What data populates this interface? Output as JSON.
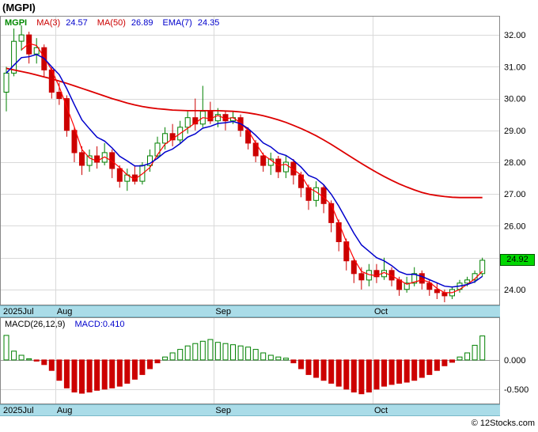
{
  "header": {
    "symbol": "(MGPI)"
  },
  "footer": {
    "copyright": "© 12Stocks.com"
  },
  "legend": {
    "symbol": "MGPI",
    "symbol_color": "#008800",
    "items": [
      {
        "label": "MA(3)",
        "value": "24.57",
        "label_color": "#cc0000",
        "value_color": "#0000cc"
      },
      {
        "label": "MA(50)",
        "value": "26.89",
        "label_color": "#cc0000",
        "value_color": "#0000cc"
      },
      {
        "label": "EMA(7)",
        "value": "24.35",
        "label_color": "#0000cc",
        "value_color": "#0000cc"
      }
    ]
  },
  "price_axis": {
    "last_price": 24.92,
    "last_price_label": "24.92",
    "badge_color": "#00d800",
    "ticks": [
      {
        "value": 32,
        "label": "32.00"
      },
      {
        "value": 31,
        "label": "31.00"
      },
      {
        "value": 30,
        "label": "30.00"
      },
      {
        "value": 29,
        "label": "29.00"
      },
      {
        "value": 28,
        "label": "28.00"
      },
      {
        "value": 27,
        "label": "27.00"
      },
      {
        "value": 26,
        "label": "26.00"
      },
      {
        "value": 25,
        "label": "25.00"
      },
      {
        "value": 24,
        "label": "24.00"
      }
    ]
  },
  "date_axis": {
    "ticks": [
      {
        "label": "2025Jul",
        "index": 0
      },
      {
        "label": "Aug",
        "index": 7
      },
      {
        "label": "Sep",
        "index": 28
      },
      {
        "label": "Oct",
        "index": 49
      }
    ]
  },
  "macd_panel": {
    "label": "MACD(26,12,9)",
    "value_label": "MACD:0.410",
    "value_color": "#0000cc",
    "ticks": [
      {
        "value": 0,
        "label": "0.000"
      },
      {
        "value": -0.5,
        "label": "-0.500"
      }
    ]
  },
  "chart_data": {
    "type": "candlestick+macd",
    "symbol": "MGPI",
    "title": "(MGPI) daily price chart with MA(3), MA(50), EMA(7) and MACD(26,12,9)",
    "ylim": [
      23.5,
      32.6
    ],
    "macd_ylim": [
      -0.76,
      0.73
    ],
    "x_months": [
      "2025Jul",
      "Aug",
      "Sep",
      "Oct"
    ],
    "candles": {
      "open": [
        30.2,
        30.8,
        31.8,
        32.0,
        31.4,
        31.6,
        30.9,
        30.2,
        30.0,
        29.0,
        28.3,
        27.9,
        28.2,
        28.0,
        28.3,
        27.8,
        27.4,
        27.6,
        27.4,
        27.9,
        28.2,
        28.6,
        28.9,
        28.7,
        29.1,
        29.4,
        29.2,
        29.6,
        29.3,
        29.5,
        29.3,
        29.4,
        29.0,
        28.6,
        28.2,
        27.9,
        28.1,
        27.7,
        28.0,
        27.6,
        27.2,
        26.8,
        27.2,
        26.7,
        26.1,
        25.5,
        24.9,
        24.5,
        24.3,
        24.6,
        24.4,
        24.6,
        24.3,
        24.0,
        24.2,
        24.5,
        24.2,
        24.0,
        23.9,
        23.8,
        24.0,
        24.2,
        24.3,
        24.5
      ],
      "high": [
        31.0,
        32.2,
        32.3,
        32.1,
        31.9,
        31.7,
        31.0,
        30.5,
        30.1,
        29.1,
        28.5,
        28.4,
        28.5,
        28.6,
        28.4,
        27.9,
        27.8,
        27.9,
        28.0,
        28.4,
        28.8,
        29.1,
        29.2,
        29.3,
        29.6,
        30.0,
        30.4,
        29.9,
        29.7,
        29.6,
        29.6,
        29.5,
        29.1,
        28.7,
        28.3,
        28.3,
        28.2,
        28.2,
        28.1,
        27.7,
        27.3,
        27.4,
        27.3,
        26.8,
        26.2,
        25.6,
        25.0,
        24.7,
        24.8,
        24.8,
        25.0,
        24.7,
        24.4,
        24.4,
        24.7,
        24.6,
        24.3,
        24.2,
        24.0,
        24.1,
        24.3,
        24.4,
        24.6,
        25.0
      ],
      "low": [
        29.6,
        30.7,
        31.5,
        31.1,
        31.1,
        30.7,
        30.0,
        29.8,
        28.8,
        28.0,
        27.6,
        27.7,
        27.8,
        27.9,
        27.5,
        27.2,
        27.1,
        27.3,
        27.3,
        27.7,
        28.1,
        28.4,
        28.5,
        28.6,
        28.9,
        29.0,
        29.1,
        29.2,
        29.1,
        29.0,
        29.2,
        28.8,
        28.4,
        28.0,
        27.7,
        27.6,
        27.5,
        27.5,
        27.3,
        26.9,
        26.5,
        26.6,
        26.4,
        25.8,
        25.2,
        24.6,
        24.2,
        24.0,
        24.1,
        24.2,
        24.3,
        24.1,
        23.8,
        23.9,
        24.1,
        24.0,
        23.8,
        23.7,
        23.6,
        23.7,
        23.9,
        24.1,
        24.2,
        24.4
      ],
      "close": [
        30.8,
        31.8,
        32.0,
        31.4,
        31.6,
        30.9,
        30.2,
        30.0,
        29.0,
        28.3,
        27.9,
        28.2,
        28.0,
        28.3,
        27.8,
        27.4,
        27.6,
        27.4,
        27.9,
        28.2,
        28.6,
        28.9,
        28.7,
        29.1,
        29.4,
        29.2,
        29.6,
        29.3,
        29.5,
        29.3,
        29.4,
        29.0,
        28.6,
        28.2,
        27.9,
        28.1,
        27.7,
        28.0,
        27.6,
        27.2,
        26.8,
        27.2,
        26.7,
        26.1,
        25.5,
        24.9,
        24.5,
        24.3,
        24.6,
        24.4,
        24.6,
        24.3,
        24.0,
        24.2,
        24.5,
        24.2,
        24.0,
        23.9,
        23.8,
        24.0,
        24.2,
        24.3,
        24.5,
        24.92
      ]
    },
    "ma50": [
      30.95,
      30.9,
      30.85,
      30.8,
      30.74,
      30.68,
      30.62,
      30.55,
      30.48,
      30.4,
      30.32,
      30.24,
      30.16,
      30.08,
      30.0,
      29.93,
      29.86,
      29.8,
      29.75,
      29.71,
      29.68,
      29.66,
      29.64,
      29.63,
      29.62,
      29.62,
      29.62,
      29.62,
      29.62,
      29.61,
      29.6,
      29.58,
      29.55,
      29.51,
      29.46,
      29.4,
      29.33,
      29.25,
      29.16,
      29.06,
      28.95,
      28.83,
      28.7,
      28.56,
      28.41,
      28.26,
      28.11,
      27.96,
      27.82,
      27.68,
      27.55,
      27.43,
      27.32,
      27.22,
      27.13,
      27.05,
      26.99,
      26.95,
      26.92,
      26.9,
      26.89,
      26.89,
      26.89,
      26.89
    ],
    "macd_hist": [
      0.42,
      0.15,
      0.08,
      0.02,
      -0.02,
      -0.08,
      -0.18,
      -0.35,
      -0.48,
      -0.55,
      -0.57,
      -0.55,
      -0.52,
      -0.5,
      -0.48,
      -0.45,
      -0.4,
      -0.33,
      -0.25,
      -0.15,
      -0.05,
      0.05,
      0.12,
      0.18,
      0.24,
      0.28,
      0.32,
      0.35,
      0.3,
      0.28,
      0.26,
      0.24,
      0.22,
      0.18,
      0.12,
      0.08,
      0.05,
      0.03,
      -0.05,
      -0.15,
      -0.25,
      -0.3,
      -0.35,
      -0.4,
      -0.45,
      -0.5,
      -0.55,
      -0.58,
      -0.55,
      -0.5,
      -0.45,
      -0.42,
      -0.4,
      -0.38,
      -0.35,
      -0.3,
      -0.25,
      -0.18,
      -0.1,
      -0.04,
      0.05,
      0.12,
      0.25,
      0.41
    ],
    "indicators": {
      "ma_fast_period": 3,
      "ma_slow_period": 50,
      "ema_period": 7
    },
    "colors": {
      "up": "#008000",
      "down": "#cc0000",
      "ma_fast": "#ff0000",
      "ma_slow": "#dd0000",
      "ema": "#0000cc",
      "grid": "#d9d9d9",
      "border": "#888888",
      "strip": "#aadce8"
    }
  }
}
